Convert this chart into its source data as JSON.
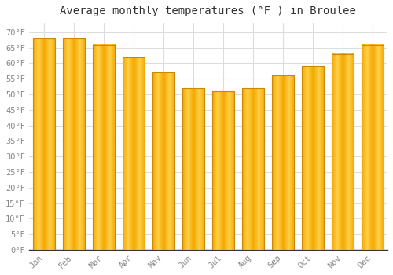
{
  "title": "Average monthly temperatures (°F ) in Broulee",
  "months": [
    "Jan",
    "Feb",
    "Mar",
    "Apr",
    "May",
    "Jun",
    "Jul",
    "Aug",
    "Sep",
    "Oct",
    "Nov",
    "Dec"
  ],
  "values": [
    68,
    68,
    66,
    62,
    57,
    52,
    51,
    52,
    56,
    59,
    63,
    66
  ],
  "bar_color_center": "#FFD04A",
  "bar_color_edge": "#F5A800",
  "bar_border_color": "#CC8800",
  "background_color": "#ffffff",
  "grid_color": "#dddddd",
  "ylim": [
    0,
    73
  ],
  "yticks": [
    0,
    5,
    10,
    15,
    20,
    25,
    30,
    35,
    40,
    45,
    50,
    55,
    60,
    65,
    70
  ],
  "ytick_labels": [
    "0°F",
    "5°F",
    "10°F",
    "15°F",
    "20°F",
    "25°F",
    "30°F",
    "35°F",
    "40°F",
    "45°F",
    "50°F",
    "55°F",
    "60°F",
    "65°F",
    "70°F"
  ],
  "title_fontsize": 10,
  "tick_fontsize": 7.5,
  "tick_color": "#888888",
  "axis_line_color": "#333333"
}
